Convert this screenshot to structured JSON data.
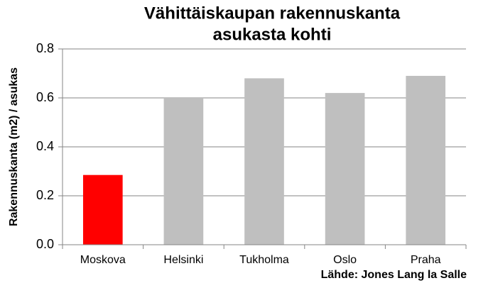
{
  "chart_data": {
    "type": "bar",
    "title": [
      "Vähittäiskaupan rakennuskanta",
      "asukasta kohti"
    ],
    "y_label": "Rakennuskanta (m2) / asukas",
    "source": "Lähde: Jones Lang la Salle",
    "categories": [
      "Moskova",
      "Helsinki",
      "Tukholma",
      "Oslo",
      "Praha"
    ],
    "values": [
      0.285,
      0.6,
      0.68,
      0.62,
      0.69
    ],
    "colors": [
      "#ff0000",
      "#bfbfbf",
      "#bfbfbf",
      "#bfbfbf",
      "#bfbfbf"
    ],
    "ylim": [
      0,
      0.8
    ],
    "yticks": [
      {
        "value": 0,
        "label": "0.0"
      },
      0.2,
      0.4,
      0.6,
      0.8
    ],
    "grid": true
  }
}
